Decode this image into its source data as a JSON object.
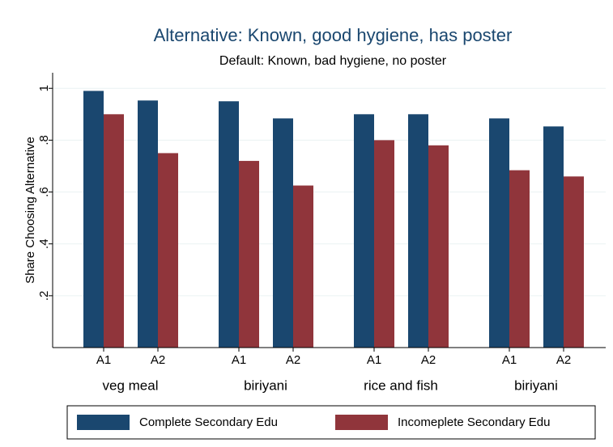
{
  "chart_data": {
    "type": "bar",
    "title": "Alternative: Known, good hygiene, has poster",
    "subtitle": "Default: Known, bad hygiene, no poster",
    "y_label": "Share Choosing Alternative",
    "groups": [
      "veg meal",
      "biriyani",
      "rice and fish",
      "biriyani"
    ],
    "categories": [
      "A1",
      "A2",
      "A1",
      "A2",
      "A1",
      "A2",
      "A1",
      "A2"
    ],
    "series": [
      {
        "name": "Complete Secondary Edu",
        "color": "#1a476f",
        "values": [
          0.99,
          0.953,
          0.95,
          0.884,
          0.9,
          0.9,
          0.884,
          0.853
        ]
      },
      {
        "name": "Incomeplete Secondary Edu",
        "color": "#90353b",
        "values": [
          0.9,
          0.75,
          0.72,
          0.625,
          0.8,
          0.78,
          0.684,
          0.66
        ]
      }
    ],
    "ylim": [
      0,
      1.06
    ],
    "yticks": [
      {
        "value": 0.2,
        "label": ".2"
      },
      {
        "value": 0.4,
        "label": ".4"
      },
      {
        "value": 0.6,
        "label": ".6"
      },
      {
        "value": 0.8,
        "label": ".8"
      },
      1
    ],
    "grid": true
  }
}
